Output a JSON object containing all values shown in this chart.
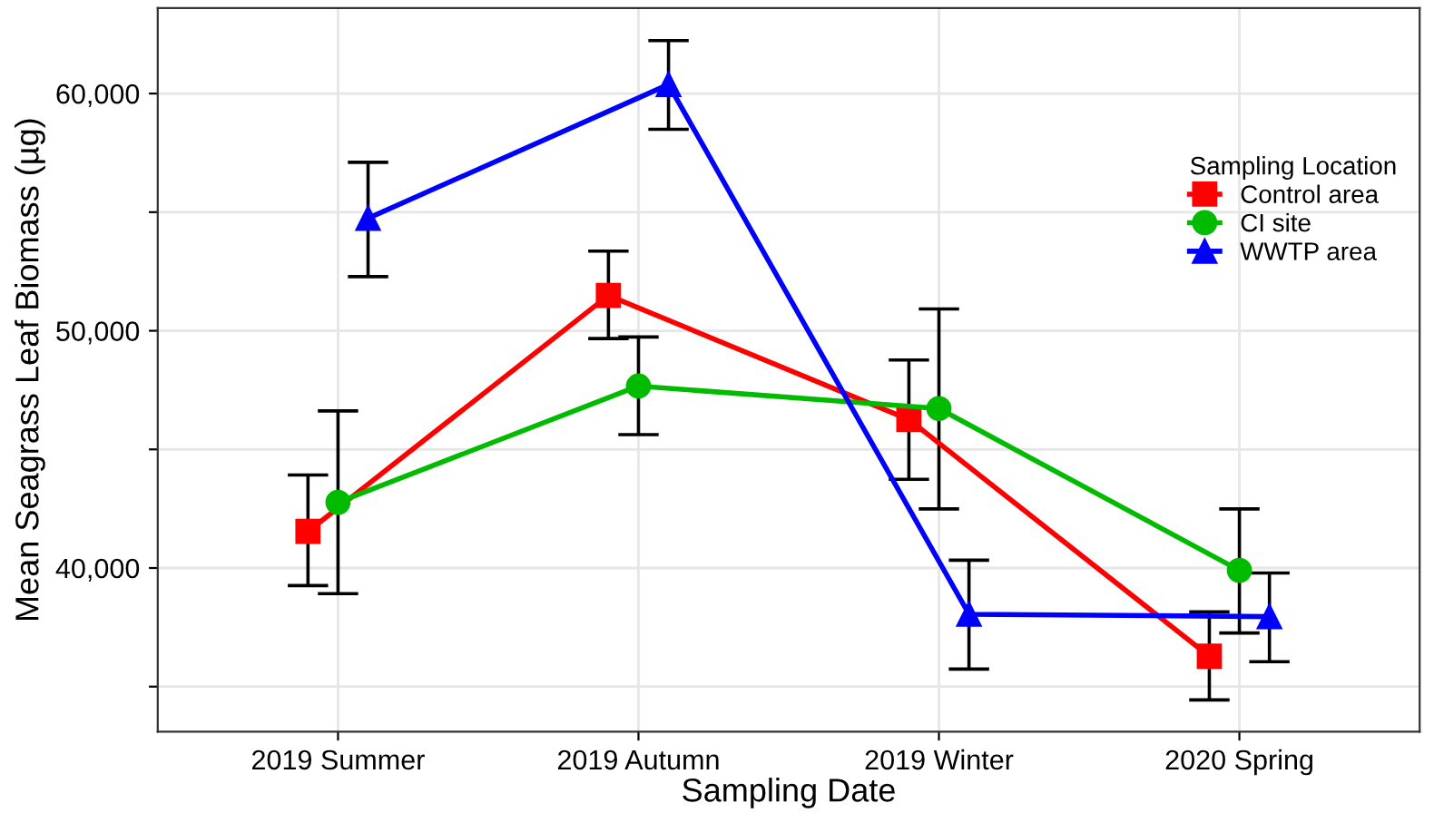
{
  "chart_data": {
    "type": "line",
    "xlabel": "Sampling Date",
    "ylabel": "Mean Seagrass Leaf Biomass (µg)",
    "legend_title": "Sampling Location",
    "categories": [
      "2019 Summer",
      "2019 Autumn",
      "2019 Winter",
      "2020 Spring"
    ],
    "series": [
      {
        "name": "Control area",
        "color": "#ff0000",
        "marker": "square",
        "values": [
          41540,
          51490,
          46260,
          36280
        ],
        "errors": [
          [
            39260,
            43920
          ],
          [
            49670,
            53360
          ],
          [
            43740,
            48770
          ],
          [
            34440,
            38150
          ]
        ]
      },
      {
        "name": "CI site",
        "color": "#00bb00",
        "marker": "circle",
        "values": [
          42770,
          47670,
          46720,
          39900
        ],
        "errors": [
          [
            38920,
            46620
          ],
          [
            45620,
            49740
          ],
          [
            42490,
            50920
          ],
          [
            37260,
            42490
          ]
        ]
      },
      {
        "name": "WWTP area",
        "color": "#0000ff",
        "marker": "triangle",
        "values": [
          54740,
          60380,
          38050,
          37950
        ],
        "errors": [
          [
            52280,
            57100
          ],
          [
            58490,
            62230
          ],
          [
            35740,
            40330
          ],
          [
            36050,
            39790
          ]
        ]
      }
    ],
    "ylim": [
      33100,
      63600
    ],
    "yticks": [
      {
        "value": 35000,
        "label": null
      },
      {
        "value": 40000,
        "label": "40,000"
      },
      {
        "value": 45000,
        "label": null
      },
      {
        "value": 50000,
        "label": "50,000"
      },
      {
        "value": 55000,
        "label": null
      },
      {
        "value": 60000,
        "label": "60,000"
      }
    ],
    "grid": true,
    "legend": "right",
    "line_style": "solid"
  }
}
